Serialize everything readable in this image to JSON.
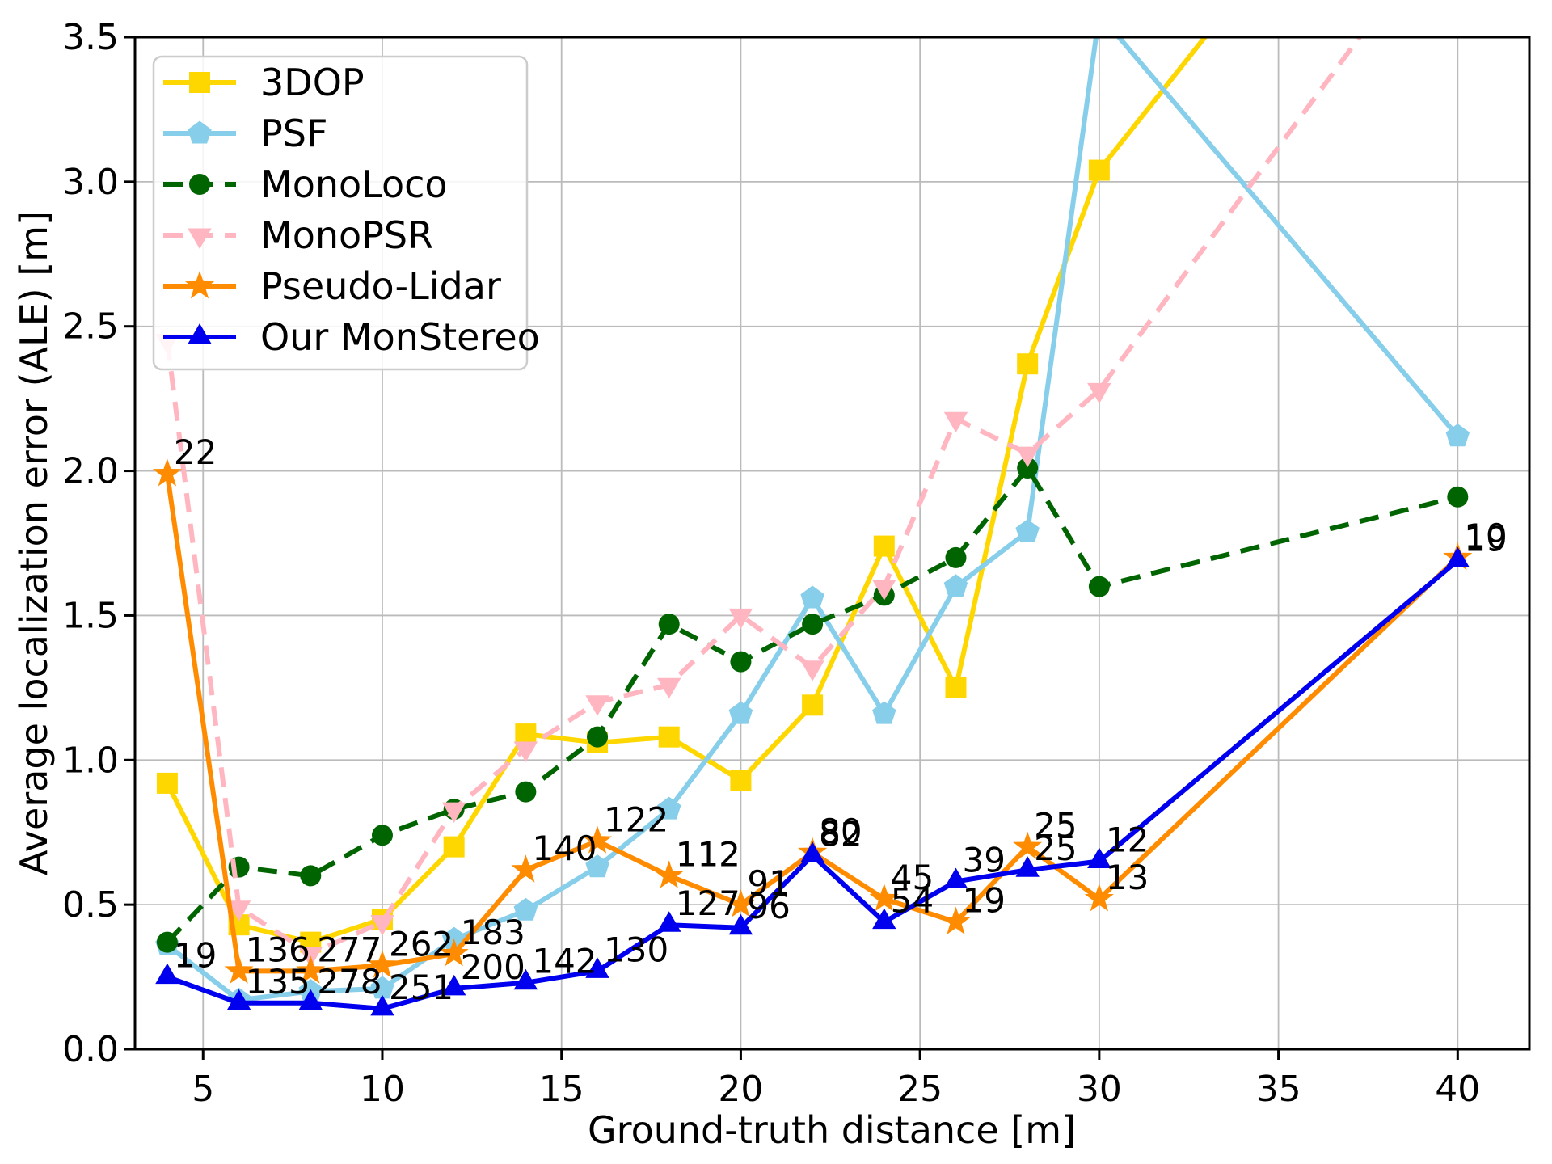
{
  "chart_data": {
    "type": "line",
    "title": "",
    "xlabel": "Ground-truth distance [m]",
    "ylabel": "Average localization error (ALE) [m]",
    "xlim": [
      3.1,
      42.0
    ],
    "ylim": [
      0.0,
      3.5
    ],
    "xticks": [
      5,
      10,
      15,
      20,
      25,
      30,
      35,
      40
    ],
    "yticks": [
      "0.0",
      "0.5",
      "1.0",
      "1.5",
      "2.0",
      "2.5",
      "3.0",
      "3.5"
    ],
    "grid": true,
    "grid_color": "#bbbbbb",
    "legend_position": "upper-left",
    "x": [
      4,
      6,
      8,
      10,
      12,
      14,
      16,
      18,
      20,
      22,
      24,
      26,
      28,
      30,
      40
    ],
    "series": [
      {
        "name": "3DOP",
        "color": "#FFD700",
        "linestyle": "solid",
        "marker": "square",
        "values": [
          0.92,
          0.43,
          0.37,
          0.45,
          0.7,
          1.09,
          1.06,
          1.08,
          0.93,
          1.19,
          1.74,
          1.25,
          2.37,
          3.04,
          4.6
        ]
      },
      {
        "name": "PSF",
        "color": "#87CEEB",
        "linestyle": "solid",
        "marker": "pentagon",
        "values": [
          0.36,
          0.17,
          0.2,
          0.21,
          0.38,
          0.48,
          0.63,
          0.83,
          1.16,
          1.56,
          1.16,
          1.6,
          1.79,
          3.58,
          2.12
        ]
      },
      {
        "name": "MonoLoco",
        "color": "#006400",
        "linestyle": "dashed",
        "marker": "circle",
        "values": [
          0.37,
          0.63,
          0.6,
          0.74,
          0.83,
          0.89,
          1.08,
          1.47,
          1.34,
          1.47,
          1.57,
          1.7,
          2.01,
          1.6,
          1.91
        ]
      },
      {
        "name": "MonoPSR",
        "color": "#FFB6C1",
        "linestyle": "dashed",
        "marker": "triangle-down",
        "values": [
          2.45,
          0.49,
          0.33,
          0.44,
          0.83,
          1.04,
          1.2,
          1.26,
          1.5,
          1.32,
          1.6,
          2.18,
          2.06,
          2.28,
          3.96
        ]
      },
      {
        "name": "Pseudo-Lidar",
        "color": "#FF8C00",
        "linestyle": "solid",
        "marker": "star",
        "values": [
          1.99,
          0.27,
          0.27,
          0.29,
          0.33,
          0.62,
          0.72,
          0.6,
          0.5,
          0.68,
          0.52,
          0.44,
          0.7,
          0.52,
          1.7
        ],
        "point_labels": [
          "22",
          "136",
          "277",
          "262",
          "183",
          "140",
          "122",
          "112",
          "91",
          "80",
          "45",
          "19",
          "25",
          "13",
          "10"
        ]
      },
      {
        "name": "Our MonStereo",
        "color": "#0000EE",
        "linestyle": "solid",
        "marker": "triangle-up",
        "values": [
          0.25,
          0.16,
          0.16,
          0.14,
          0.21,
          0.23,
          0.27,
          0.43,
          0.42,
          0.67,
          0.44,
          0.58,
          0.62,
          0.65,
          1.69
        ],
        "point_labels": [
          "19",
          "135",
          "278",
          "251",
          "200",
          "142",
          "130",
          "127",
          "96",
          "82",
          "54",
          "39",
          "25",
          "12",
          "19"
        ]
      }
    ]
  }
}
